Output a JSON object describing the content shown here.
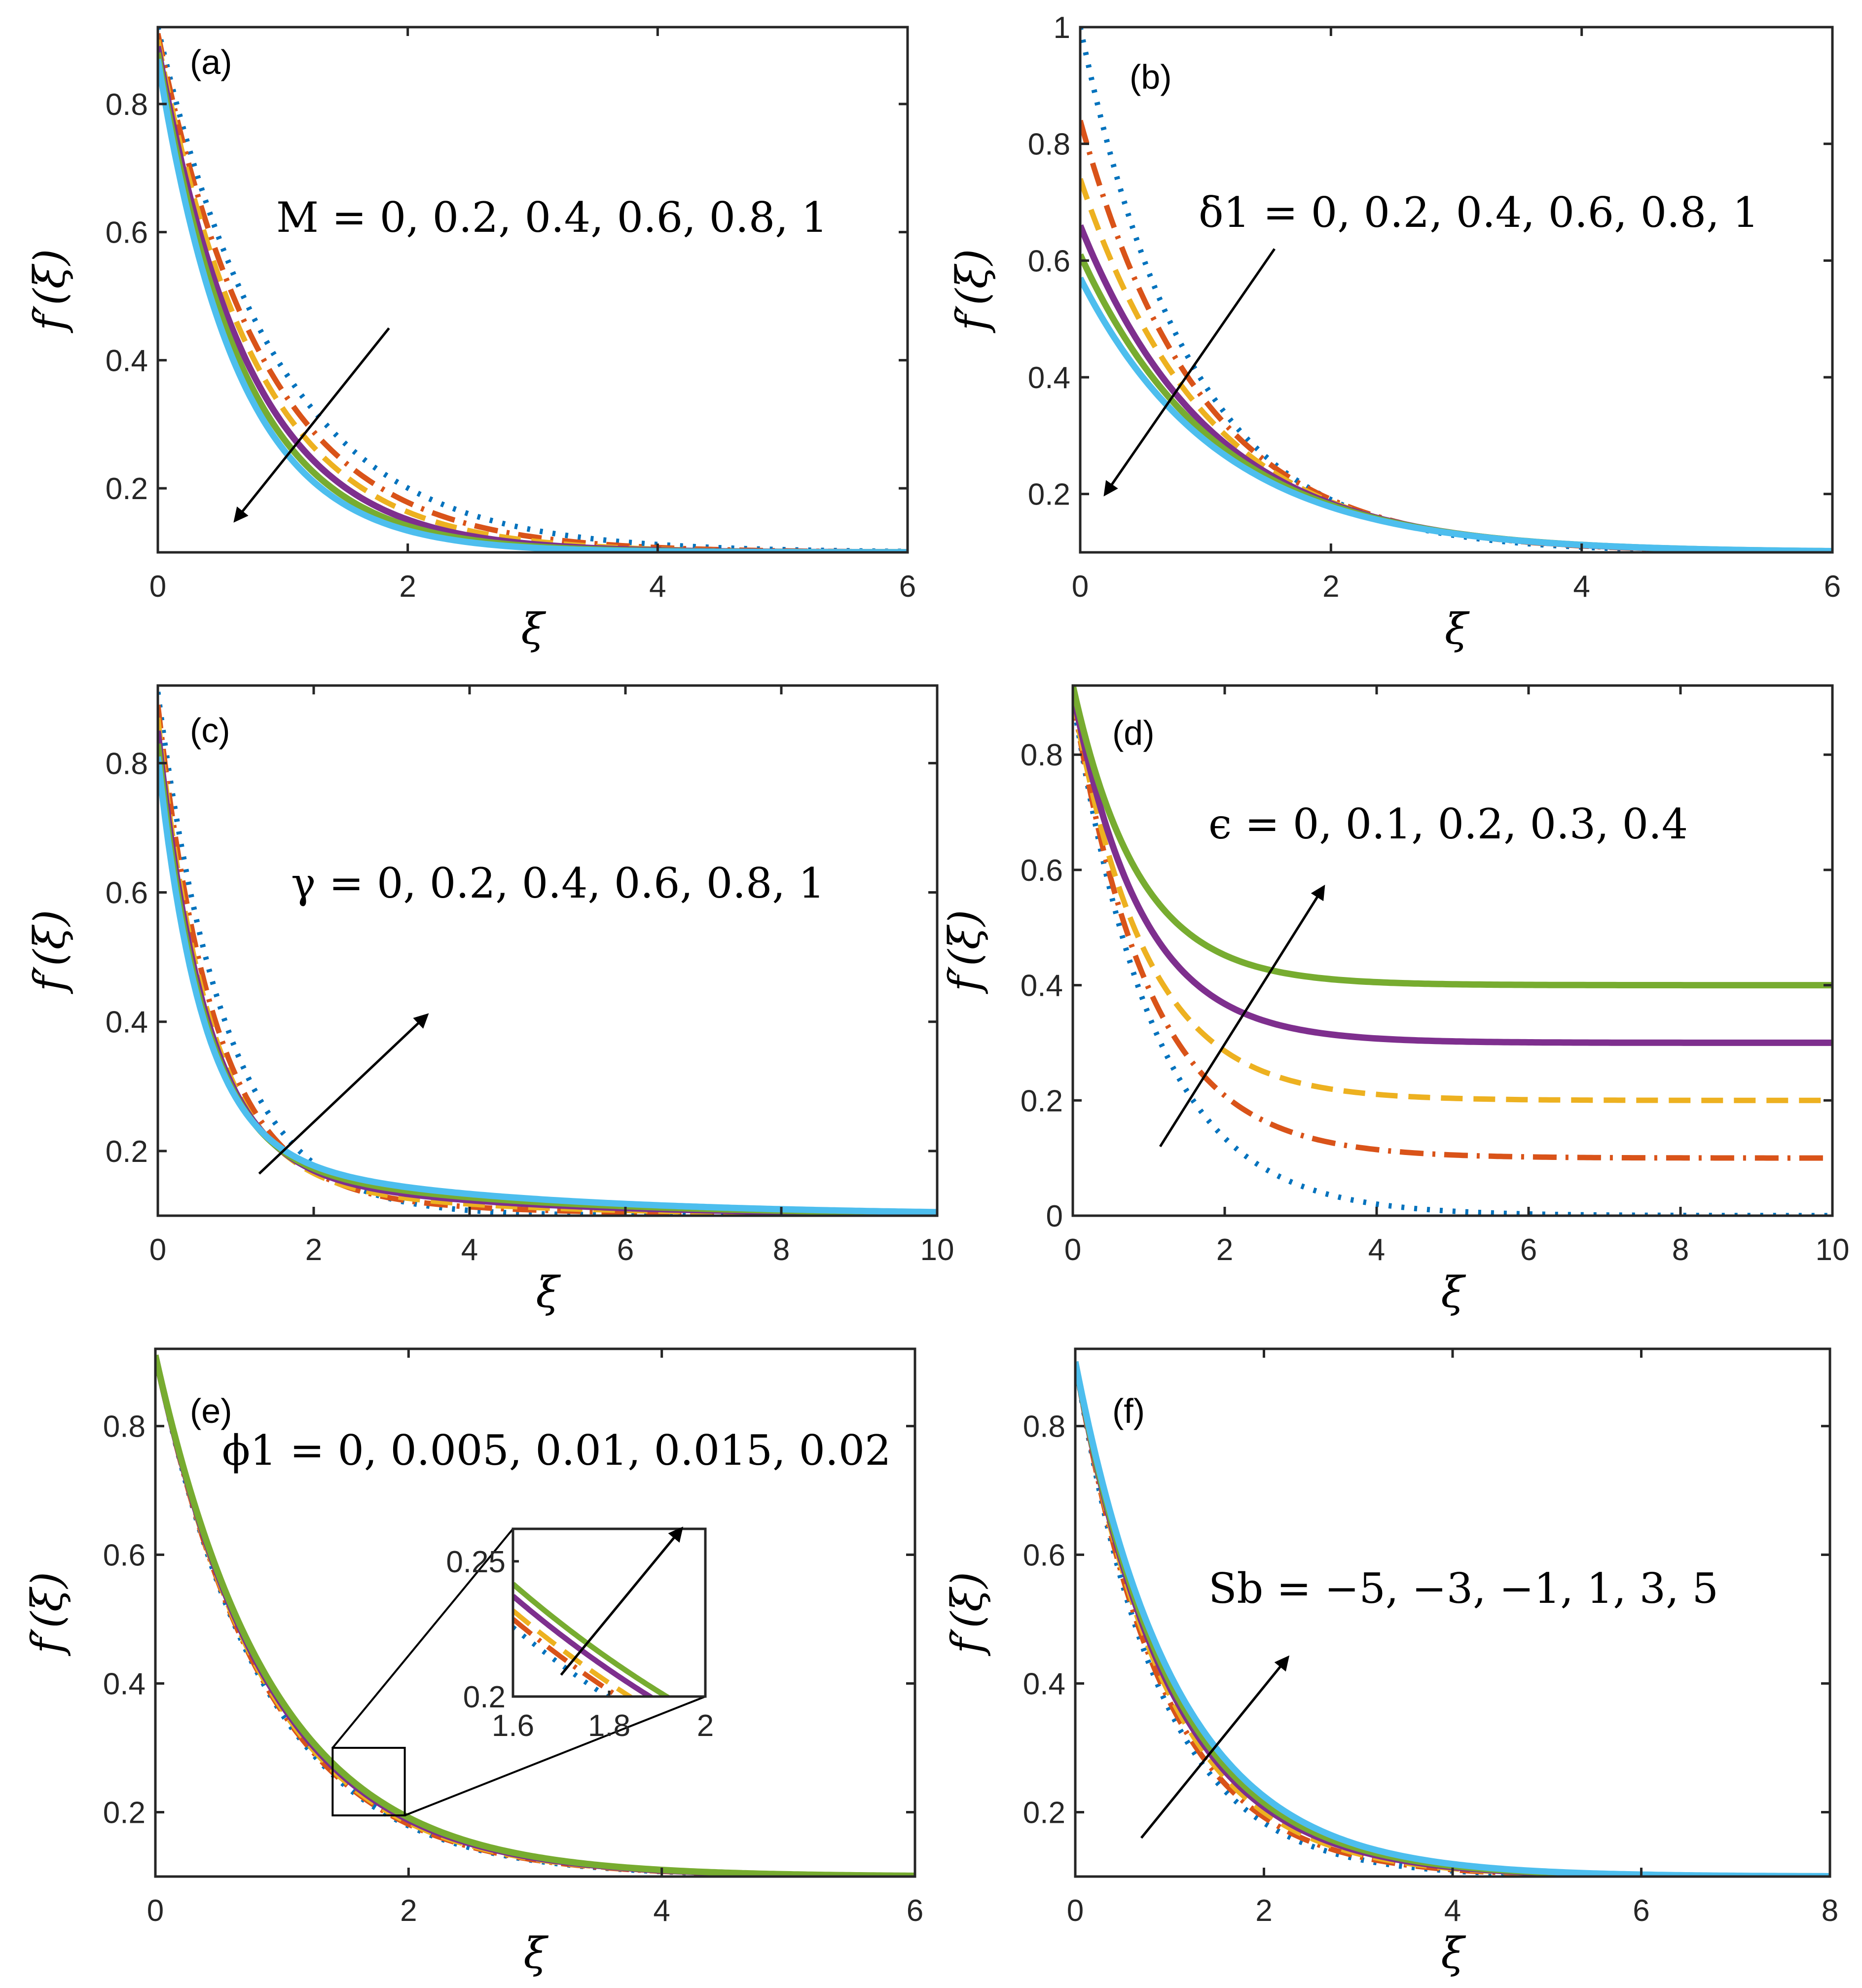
{
  "styles": {
    "blue": {
      "color": "#0072BD",
      "dash": "dot"
    },
    "orange": {
      "color": "#D95319",
      "dash": "dashdot"
    },
    "yellow": {
      "color": "#EDB120",
      "dash": "dash"
    },
    "purple": {
      "color": "#7E2F8E",
      "dash": "solid"
    },
    "green": {
      "color": "#77AC30",
      "dash": "solid"
    },
    "cyan": {
      "color": "#4DBEEE",
      "dash": "solid"
    }
  },
  "chart_data": [
    {
      "id": "a",
      "type": "line",
      "panel_label": "(a)",
      "xlabel": "ξ",
      "ylabel": "f′(ξ)",
      "xlim": [
        0,
        6
      ],
      "ylim": [
        0.1,
        0.92
      ],
      "xticks": [
        0,
        2,
        4,
        6
      ],
      "xtick_labels": [
        "0",
        "2",
        "4",
        "6"
      ],
      "yticks": [
        0.2,
        0.4,
        0.6,
        0.8
      ],
      "ytick_labels": [
        "0.2",
        "0.4",
        "0.6",
        "0.8"
      ],
      "annotation": "M = 0, 0.2, 0.4, 0.6, 0.8, 1",
      "arrow": {
        "from": [
          1.85,
          0.45
        ],
        "to": [
          0.62,
          0.15
        ]
      },
      "series": [
        {
          "name": "M = 0",
          "style": "blue",
          "params": {
            "a": 0.82,
            "k": 1.05,
            "c": 0.1
          }
        },
        {
          "name": "M = 0.2",
          "style": "orange",
          "params": {
            "a": 0.81,
            "k": 1.17,
            "c": 0.1
          }
        },
        {
          "name": "M = 0.4",
          "style": "yellow",
          "params": {
            "a": 0.8,
            "k": 1.27,
            "c": 0.1
          }
        },
        {
          "name": "M = 0.6",
          "style": "purple",
          "params": {
            "a": 0.79,
            "k": 1.37,
            "c": 0.1
          }
        },
        {
          "name": "M = 0.8",
          "style": "green",
          "params": {
            "a": 0.78,
            "k": 1.47,
            "c": 0.1
          }
        },
        {
          "name": "M = 1",
          "style": "cyan",
          "params": {
            "a": 0.77,
            "k": 1.56,
            "c": 0.1
          }
        }
      ]
    },
    {
      "id": "b",
      "type": "line",
      "panel_label": "(b)",
      "xlabel": "ξ",
      "ylabel": "f′(ξ)",
      "xlim": [
        0,
        6
      ],
      "ylim": [
        0.1,
        1.0
      ],
      "xticks": [
        0,
        2,
        4,
        6
      ],
      "xtick_labels": [
        "0",
        "2",
        "4",
        "6"
      ],
      "yticks": [
        0.2,
        0.4,
        0.6,
        0.8,
        1.0
      ],
      "ytick_labels": [
        "0.2",
        "0.4",
        "0.6",
        "0.8",
        "1"
      ],
      "annotation": "δ1 = 0, 0.2, 0.4, 0.6, 0.8, 1",
      "arrow": {
        "from": [
          1.55,
          0.62
        ],
        "to": [
          0.2,
          0.2
        ]
      },
      "series": [
        {
          "name": "δ1 = 0",
          "style": "blue",
          "params": {
            "a": 0.9,
            "k": 1.15,
            "c": 0.1
          }
        },
        {
          "name": "δ1 = 0.2",
          "style": "orange",
          "params": {
            "a": 0.74,
            "k": 1.05,
            "c": 0.1
          }
        },
        {
          "name": "δ1 = 0.4",
          "style": "yellow",
          "params": {
            "a": 0.64,
            "k": 1.0,
            "c": 0.1
          }
        },
        {
          "name": "δ1 = 0.6",
          "style": "purple",
          "params": {
            "a": 0.56,
            "k": 0.95,
            "c": 0.1
          }
        },
        {
          "name": "δ1 = 0.8",
          "style": "green",
          "params": {
            "a": 0.51,
            "k": 0.92,
            "c": 0.1
          }
        },
        {
          "name": "δ1 = 1",
          "style": "cyan",
          "params": {
            "a": 0.47,
            "k": 0.9,
            "c": 0.1
          }
        }
      ]
    },
    {
      "id": "c",
      "type": "line",
      "panel_label": "(c)",
      "xlabel": "ξ",
      "ylabel": "f′(ξ)",
      "xlim": [
        0,
        10
      ],
      "ylim": [
        0.1,
        0.92
      ],
      "xticks": [
        0,
        2,
        4,
        6,
        8,
        10
      ],
      "xtick_labels": [
        "0",
        "2",
        "4",
        "6",
        "8",
        "10"
      ],
      "yticks": [
        0.2,
        0.4,
        0.6,
        0.8
      ],
      "ytick_labels": [
        "0.2",
        "0.4",
        "0.6",
        "0.8"
      ],
      "annotation": "γ = 0, 0.2, 0.4, 0.6, 0.8, 1",
      "arrow": {
        "from": [
          1.3,
          0.165
        ],
        "to": [
          3.45,
          0.41
        ]
      },
      "series": [
        {
          "name": "γ = 0",
          "style": "blue",
          "params": {
            "a": 0.81,
            "k": 1.15,
            "c": 0.1,
            "b": 0.0,
            "k2": 0.3
          }
        },
        {
          "name": "γ = 0.2",
          "style": "orange",
          "params": {
            "a": 0.79,
            "k": 1.4,
            "c": 0.1,
            "b": 0.05,
            "k2": 0.38
          }
        },
        {
          "name": "γ = 0.4",
          "style": "yellow",
          "params": {
            "a": 0.77,
            "k": 1.55,
            "c": 0.1,
            "b": 0.07,
            "k2": 0.36
          }
        },
        {
          "name": "γ = 0.6",
          "style": "purple",
          "params": {
            "a": 0.75,
            "k": 1.65,
            "c": 0.1,
            "b": 0.09,
            "k2": 0.34
          }
        },
        {
          "name": "γ = 0.8",
          "style": "green",
          "params": {
            "a": 0.73,
            "k": 1.72,
            "c": 0.1,
            "b": 0.1,
            "k2": 0.32
          }
        },
        {
          "name": "γ = 1",
          "style": "cyan",
          "params": {
            "a": 0.71,
            "k": 1.78,
            "c": 0.1,
            "b": 0.11,
            "k2": 0.3
          }
        }
      ]
    },
    {
      "id": "d",
      "type": "line",
      "panel_label": "(d)",
      "xlabel": "ξ",
      "ylabel": "f′(ξ)",
      "xlim": [
        0,
        10
      ],
      "ylim": [
        0,
        0.92
      ],
      "xticks": [
        0,
        2,
        4,
        6,
        8,
        10
      ],
      "xtick_labels": [
        "0",
        "2",
        "4",
        "6",
        "8",
        "10"
      ],
      "yticks": [
        0,
        0.2,
        0.4,
        0.6,
        0.8
      ],
      "ytick_labels": [
        "0",
        "0.2",
        "0.4",
        "0.6",
        "0.8"
      ],
      "annotation": "ϵ = 0, 0.1, 0.2, 0.3, 0.4",
      "arrow": {
        "from": [
          1.15,
          0.12
        ],
        "to": [
          3.3,
          0.57
        ]
      },
      "series": [
        {
          "name": "ϵ = 0",
          "style": "blue",
          "params": {
            "a": 0.9,
            "k": 0.95,
            "c": 0.0
          }
        },
        {
          "name": "ϵ = 0.1",
          "style": "orange",
          "params": {
            "a": 0.8,
            "k": 1.0,
            "c": 0.1
          }
        },
        {
          "name": "ϵ = 0.2",
          "style": "yellow",
          "params": {
            "a": 0.7,
            "k": 1.05,
            "c": 0.2
          }
        },
        {
          "name": "ϵ = 0.3",
          "style": "purple",
          "params": {
            "a": 0.61,
            "k": 1.1,
            "c": 0.3
          }
        },
        {
          "name": "ϵ = 0.4",
          "style": "green",
          "params": {
            "a": 0.52,
            "k": 1.15,
            "c": 0.4
          }
        }
      ]
    },
    {
      "id": "e",
      "type": "line",
      "panel_label": "(e)",
      "xlabel": "ξ",
      "ylabel": "f′(ξ)",
      "xlim": [
        0,
        6
      ],
      "ylim": [
        0.1,
        0.92
      ],
      "xticks": [
        0,
        2,
        4,
        6
      ],
      "xtick_labels": [
        "0",
        "2",
        "4",
        "6"
      ],
      "yticks": [
        0.2,
        0.4,
        0.6,
        0.8
      ],
      "ytick_labels": [
        "0.2",
        "0.4",
        "0.6",
        "0.8"
      ],
      "annotation": "ϕ1 = 0, 0.005, 0.01, 0.015, 0.02",
      "series": [
        {
          "name": "ϕ1 = 0",
          "style": "blue",
          "params": {
            "a": 0.81,
            "k": 1.165,
            "c": 0.1
          }
        },
        {
          "name": "ϕ1 = 0.005",
          "style": "orange",
          "params": {
            "a": 0.81,
            "k": 1.15,
            "c": 0.1
          }
        },
        {
          "name": "ϕ1 = 0.01",
          "style": "yellow",
          "params": {
            "a": 0.81,
            "k": 1.135,
            "c": 0.1
          }
        },
        {
          "name": "ϕ1 = 0.015",
          "style": "purple",
          "params": {
            "a": 0.81,
            "k": 1.11,
            "c": 0.1
          }
        },
        {
          "name": "ϕ1 = 0.02",
          "style": "green",
          "params": {
            "a": 0.81,
            "k": 1.09,
            "c": 0.1
          }
        }
      ],
      "inset": {
        "xlim": [
          1.6,
          2
        ],
        "ylim": [
          0.2,
          0.262
        ],
        "source_box": {
          "x": [
            1.4,
            1.97
          ],
          "y": [
            0.195,
            0.3
          ]
        },
        "xtick_labels": [
          "1.6",
          "1.8",
          "2"
        ],
        "xticks": [
          1.6,
          1.8,
          2
        ],
        "ytick_labels": [
          "0.2",
          "0.25"
        ],
        "yticks": [
          0.2,
          0.25
        ],
        "arrow": {
          "from": [
            1.7,
            0.208
          ],
          "to": [
            1.95,
            0.262
          ]
        }
      }
    },
    {
      "id": "f",
      "type": "line",
      "panel_label": "(f)",
      "xlabel": "ξ",
      "ylabel": "f′(ξ)",
      "xlim": [
        0,
        8
      ],
      "ylim": [
        0.1,
        0.92
      ],
      "xticks": [
        0,
        2,
        4,
        6,
        8
      ],
      "xtick_labels": [
        "0",
        "2",
        "4",
        "6",
        "8"
      ],
      "yticks": [
        0.2,
        0.4,
        0.6,
        0.8
      ],
      "ytick_labels": [
        "0.2",
        "0.4",
        "0.6",
        "0.8"
      ],
      "annotation": "Sb = −5, −3, −1, 1, 3, 5",
      "arrow": {
        "from": [
          0.7,
          0.16
        ],
        "to": [
          2.25,
          0.44
        ]
      },
      "series": [
        {
          "name": "Sb = −5",
          "style": "blue",
          "params": {
            "a": 0.8,
            "k": 1.13,
            "c": 0.1
          }
        },
        {
          "name": "Sb = −3",
          "style": "orange",
          "params": {
            "a": 0.8,
            "k": 1.08,
            "c": 0.1
          }
        },
        {
          "name": "Sb = −1",
          "style": "yellow",
          "params": {
            "a": 0.8,
            "k": 1.04,
            "c": 0.1
          }
        },
        {
          "name": "Sb = 1",
          "style": "purple",
          "params": {
            "a": 0.8,
            "k": 1.0,
            "c": 0.1
          }
        },
        {
          "name": "Sb = 3",
          "style": "green",
          "params": {
            "a": 0.8,
            "k": 0.97,
            "c": 0.1
          }
        },
        {
          "name": "Sb = 5",
          "style": "cyan",
          "params": {
            "a": 0.8,
            "k": 0.93,
            "c": 0.1
          }
        }
      ]
    }
  ]
}
